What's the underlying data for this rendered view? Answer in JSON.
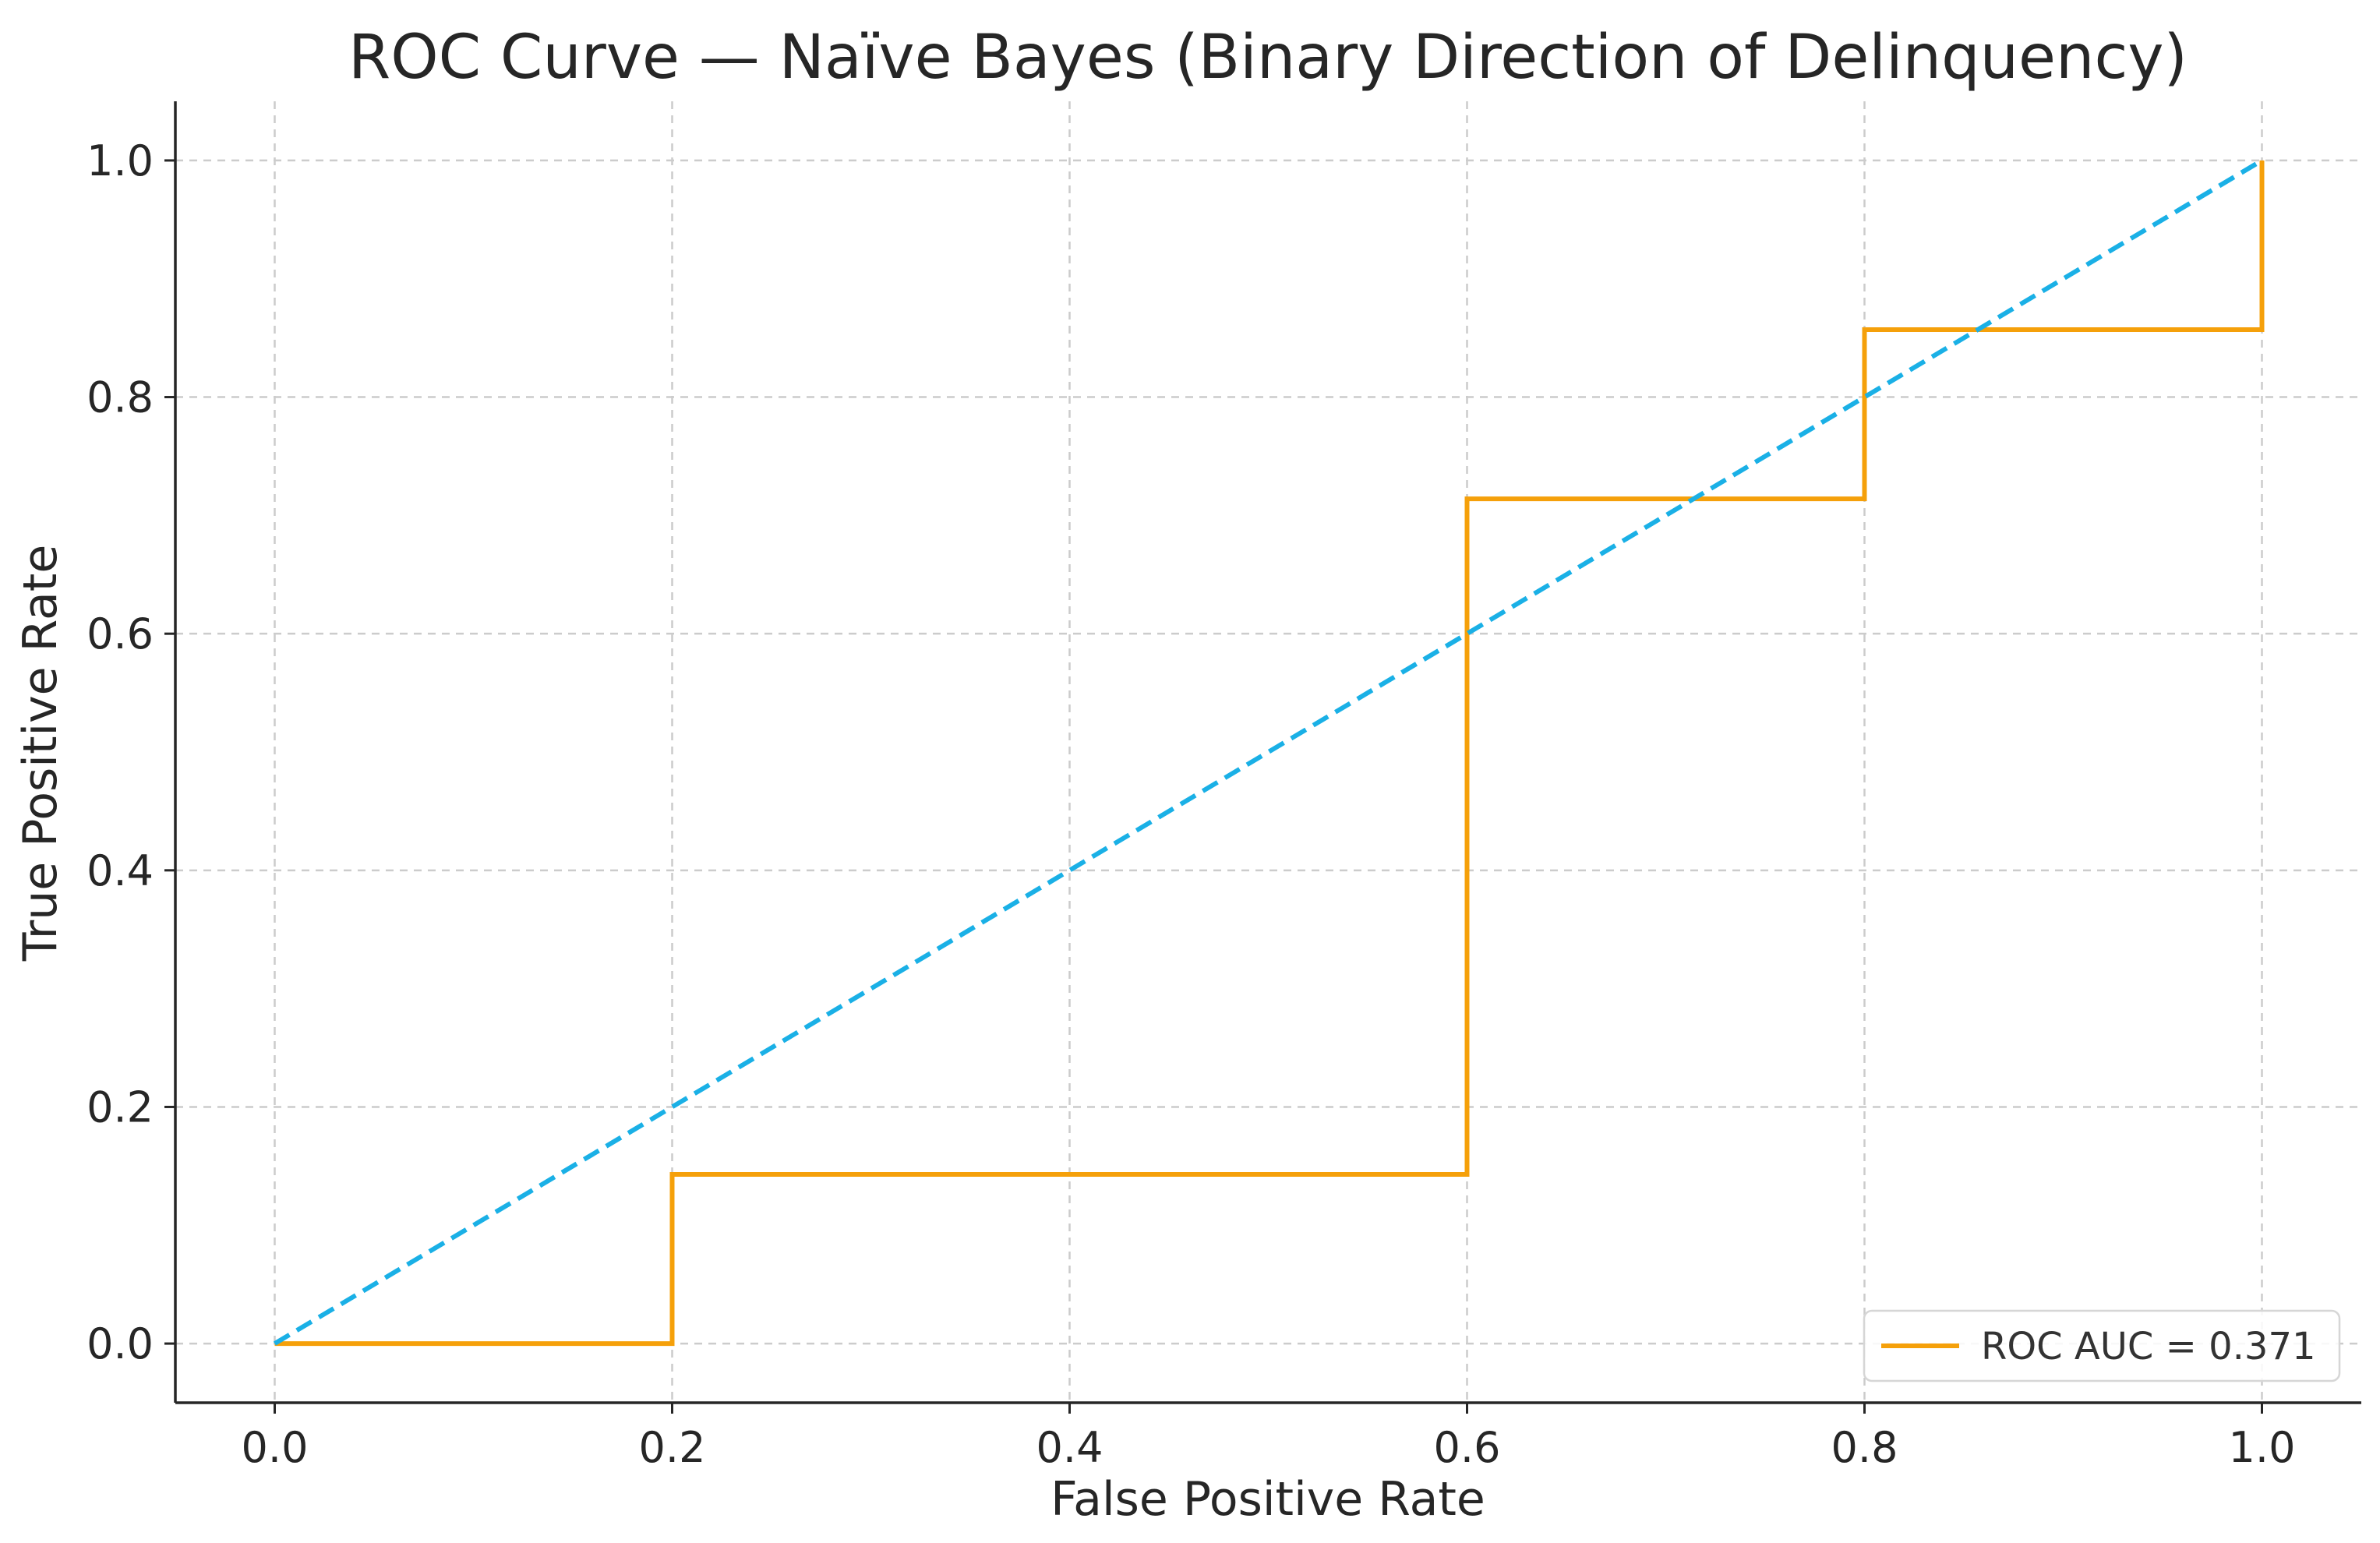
{
  "chart_data": {
    "type": "line",
    "title": "ROC Curve — Naïve Bayes (Binary Direction of Delinquency)",
    "xlabel": "False Positive Rate",
    "ylabel": "True Positive Rate",
    "xlim": [
      -0.05,
      1.05
    ],
    "ylim": [
      -0.05,
      1.05
    ],
    "xticks": [
      0.0,
      0.2,
      0.4,
      0.6,
      0.8,
      1.0
    ],
    "xtick_labels": [
      "0.0",
      "0.2",
      "0.4",
      "0.6",
      "0.8",
      "1.0"
    ],
    "yticks": [
      0.0,
      0.2,
      0.4,
      0.6,
      0.8,
      1.0
    ],
    "ytick_labels": [
      "0.0",
      "0.2",
      "0.4",
      "0.6",
      "0.8",
      "1.0"
    ],
    "grid": true,
    "legend_position": "bottom-right",
    "series": [
      {
        "name": "ROC AUC = 0.371",
        "style": "solid",
        "color": "#f5a00a",
        "x": [
          0.0,
          0.2,
          0.2,
          0.6,
          0.6,
          0.8,
          0.8,
          1.0,
          1.0
        ],
        "y": [
          0.0,
          0.0,
          0.143,
          0.143,
          0.714,
          0.714,
          0.857,
          0.857,
          1.0
        ]
      },
      {
        "style": "dashed",
        "color": "#1ab0e6",
        "x": [
          0.0,
          1.0
        ],
        "y": [
          0.0,
          1.0
        ]
      }
    ]
  }
}
